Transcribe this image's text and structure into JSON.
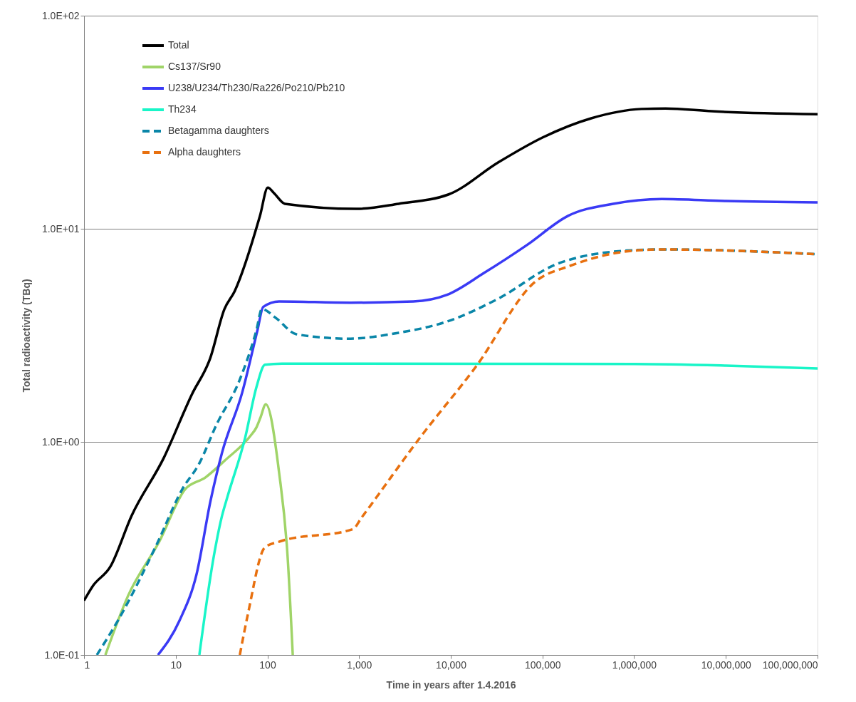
{
  "chart_data": {
    "type": "line",
    "xlabel": "Time in years after 1.4.2016",
    "ylabel": "Total radioactivity (TBq)",
    "log": "xy",
    "grid": "y",
    "legend": "top left",
    "xlim": [
      1,
      100000000
    ],
    "xticks": [
      1,
      10,
      100,
      {
        "value": 1000,
        "label": "1,000"
      },
      {
        "value": 10000,
        "label": "10,000"
      },
      {
        "value": 100000,
        "label": "100,000"
      },
      {
        "value": 1000000,
        "label": "1,000,000"
      },
      {
        "value": 10000000,
        "label": "10,000,000"
      },
      {
        "value": 100000000,
        "label": "100,000,000"
      }
    ],
    "ylim": [
      0.1,
      100
    ],
    "yticks": [
      {
        "value": 0.1,
        "label": "1.0E-01"
      },
      {
        "value": 1,
        "label": "1.0E+00"
      },
      {
        "value": 10,
        "label": "1.0E+01"
      },
      {
        "value": 100,
        "label": "1.0E+02"
      }
    ],
    "series": [
      {
        "name": "Total",
        "color": "#000000",
        "line_style": "solid",
        "x": [
          1,
          1.24,
          1.94,
          3.3,
          7.4,
          15,
          23.7,
          34,
          44,
          83,
          101,
          118,
          155,
          930,
          2700,
          9500,
          33000,
          100000,
          340000,
          1200000,
          2200000,
          7000000,
          100000000
        ],
        "values": [
          0.18,
          0.21,
          0.26,
          0.45,
          0.84,
          1.67,
          2.46,
          4.2,
          5.1,
          11.5,
          15.6,
          14.7,
          13.1,
          12.4,
          13.1,
          14.5,
          20.5,
          26.8,
          33,
          36.5,
          36.7,
          35.6,
          34.5
        ]
      },
      {
        "name": "Cs137/Sr90",
        "color": "#a0d468",
        "line_style": "solid",
        "x": [
          1.71,
          3.03,
          6.6,
          12.7,
          21,
          34.6,
          65.6,
          76,
          84,
          96,
          134,
          166,
          189
        ],
        "values": [
          0.1,
          0.19,
          0.34,
          0.6,
          0.68,
          0.82,
          1.07,
          1.17,
          1.3,
          1.5,
          0.72,
          0.29,
          0.1
        ]
      },
      {
        "name": "U238/U234/Th230/Ra226/Po210/Pb210",
        "color": "#3a3af5",
        "line_style": "solid",
        "x": [
          6.4,
          11,
          16.9,
          24,
          32,
          53,
          78,
          90,
          134,
          800,
          3900,
          9100,
          23000,
          68000,
          190000,
          590000,
          2000000,
          10000000,
          100000000
        ],
        "values": [
          0.1,
          0.145,
          0.24,
          0.53,
          0.89,
          1.7,
          3.35,
          4.3,
          4.56,
          4.5,
          4.56,
          4.9,
          6.2,
          8.4,
          11.5,
          13.1,
          13.8,
          13.5,
          13.3
        ]
      },
      {
        "name": "Th234",
        "color": "#19f5c8",
        "line_style": "solid",
        "x": [
          18.1,
          26,
          32,
          37,
          57,
          76,
          94,
          144,
          1000000,
          10000000,
          100000000
        ],
        "values": [
          0.1,
          0.29,
          0.45,
          0.56,
          1.04,
          1.81,
          2.3,
          2.33,
          2.32,
          2.28,
          2.21
        ]
      },
      {
        "name": "Betagamma daughters",
        "color": "#0a86a8",
        "line_style": "dashed",
        "x": [
          1.38,
          2.45,
          6.2,
          11.8,
          18,
          28,
          49,
          76,
          87,
          125,
          207,
          750,
          2700,
          9100,
          33000,
          140000,
          830000,
          2000000,
          100000000
        ],
        "values": [
          0.1,
          0.15,
          0.33,
          0.6,
          0.79,
          1.21,
          1.92,
          3.35,
          4.2,
          3.8,
          3.2,
          3.05,
          3.25,
          3.67,
          4.7,
          6.8,
          7.9,
          8.0,
          7.6
        ]
      },
      {
        "name": "Alpha daughters",
        "color": "#e8700f",
        "line_style": "dashed",
        "x": [
          50,
          61,
          94,
          134,
          860,
          1060,
          4800,
          18600,
          84000,
          200000,
          1000000,
          2000000,
          100000000
        ],
        "values": [
          0.1,
          0.154,
          0.32,
          0.34,
          0.39,
          0.44,
          1.07,
          2.24,
          5.66,
          6.7,
          7.9,
          8.0,
          7.6
        ]
      }
    ]
  }
}
